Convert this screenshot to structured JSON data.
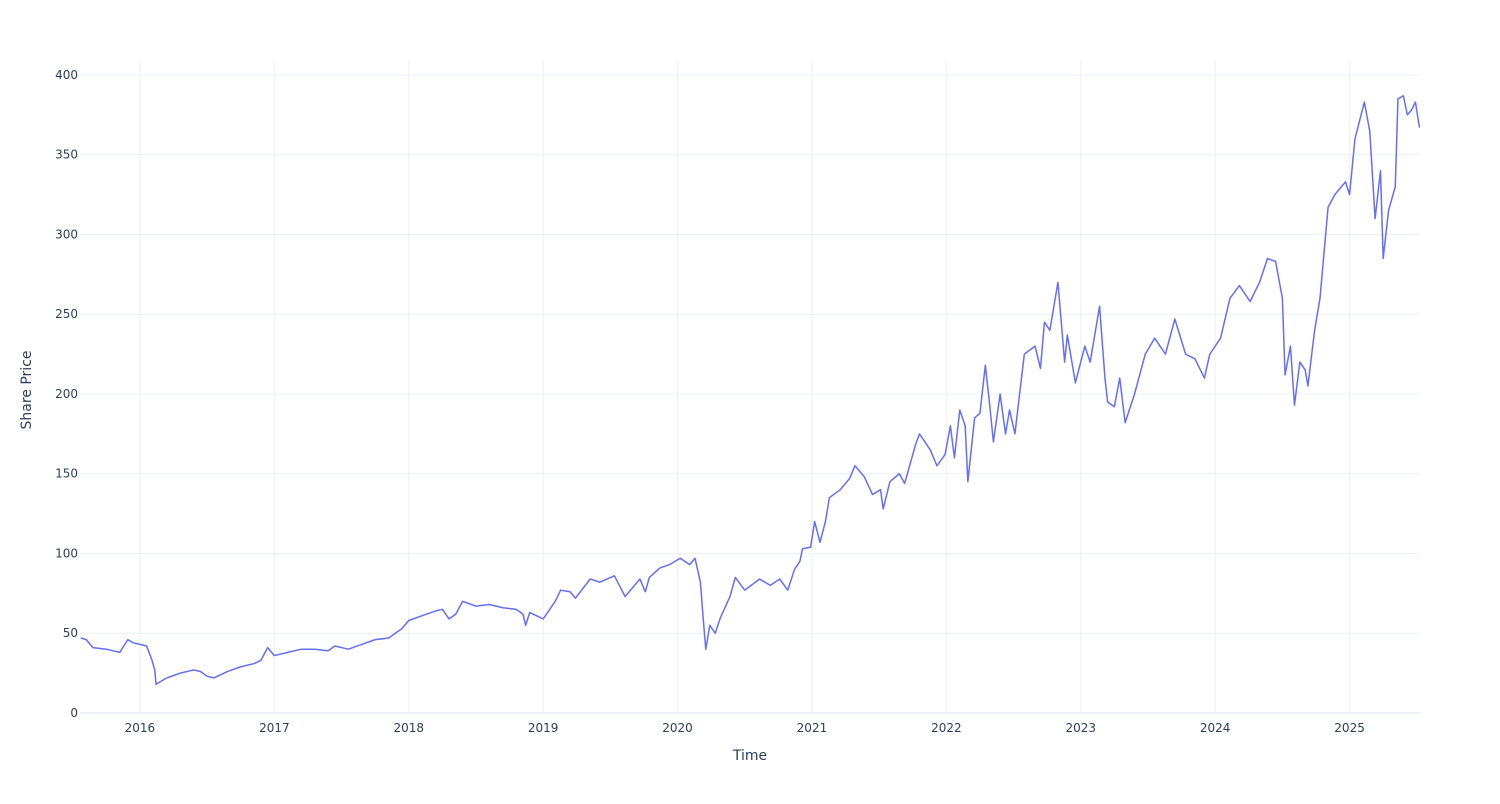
{
  "chart_data": {
    "type": "line",
    "x_label": "Time",
    "y_label": "Share Price",
    "xlim": [
      2015.554,
      2025.524
    ],
    "xticks": [
      2016,
      2017,
      2018,
      2019,
      2020,
      2021,
      2022,
      2023,
      2024,
      2025
    ],
    "ylim": [
      0,
      409.4
    ],
    "yticks": [
      0,
      50,
      100,
      150,
      200,
      250,
      300,
      350,
      400
    ],
    "grid": true,
    "series": [
      {
        "color": "#636efa",
        "x": [
          2015.56,
          2015.6,
          2015.65,
          2015.75,
          2015.85,
          2015.91,
          2015.95,
          2016.0,
          2016.05,
          2016.09,
          2016.11,
          2016.12,
          2016.2,
          2016.3,
          2016.4,
          2016.45,
          2016.5,
          2016.55,
          2016.65,
          2016.75,
          2016.85,
          2016.9,
          2016.95,
          2017.0,
          2017.1,
          2017.2,
          2017.3,
          2017.4,
          2017.45,
          2017.55,
          2017.65,
          2017.75,
          2017.85,
          2017.9,
          2017.95,
          2018.0,
          2018.1,
          2018.2,
          2018.25,
          2018.3,
          2018.35,
          2018.4,
          2018.5,
          2018.6,
          2018.7,
          2018.8,
          2018.85,
          2018.87,
          2018.9,
          2018.95,
          2019.0,
          2019.09,
          2019.13,
          2019.2,
          2019.24,
          2019.35,
          2019.42,
          2019.53,
          2019.61,
          2019.68,
          2019.72,
          2019.76,
          2019.79,
          2019.87,
          2019.94,
          2020.02,
          2020.09,
          2020.13,
          2020.17,
          2020.19,
          2020.21,
          2020.24,
          2020.28,
          2020.32,
          2020.39,
          2020.43,
          2020.5,
          2020.61,
          2020.69,
          2020.76,
          2020.82,
          2020.87,
          2020.91,
          2020.93,
          2020.99,
          2021.02,
          2021.06,
          2021.1,
          2021.13,
          2021.21,
          2021.28,
          2021.32,
          2021.39,
          2021.45,
          2021.51,
          2021.53,
          2021.58,
          2021.65,
          2021.69,
          2021.77,
          2021.8,
          2021.88,
          2021.93,
          2021.99,
          2022.03,
          2022.06,
          2022.1,
          2022.14,
          2022.16,
          2022.21,
          2022.25,
          2022.29,
          2022.32,
          2022.35,
          2022.4,
          2022.44,
          2022.47,
          2022.51,
          2022.58,
          2022.66,
          2022.7,
          2022.73,
          2022.77,
          2022.83,
          2022.88,
          2022.9,
          2022.96,
          2023.03,
          2023.07,
          2023.14,
          2023.18,
          2023.2,
          2023.25,
          2023.29,
          2023.33,
          2023.4,
          2023.48,
          2023.55,
          2023.63,
          2023.7,
          2023.78,
          2023.85,
          2023.92,
          2023.96,
          2024.04,
          2024.11,
          2024.18,
          2024.26,
          2024.33,
          2024.39,
          2024.45,
          2024.5,
          2024.52,
          2024.56,
          2024.59,
          2024.63,
          2024.67,
          2024.69,
          2024.74,
          2024.78,
          2024.84,
          2024.89,
          2024.97,
          2025.0,
          2025.04,
          2025.11,
          2025.15,
          2025.19,
          2025.23,
          2025.25,
          2025.29,
          2025.34,
          2025.36,
          2025.4,
          2025.43,
          2025.46,
          2025.49,
          2025.52
        ],
        "values": [
          47,
          46,
          41,
          40,
          38,
          46,
          44,
          43,
          42,
          33,
          27,
          18,
          22,
          25,
          27,
          26,
          23,
          22,
          26,
          29,
          31,
          33,
          41,
          36,
          38,
          40,
          40,
          39,
          42,
          40,
          43,
          46,
          47,
          50,
          53,
          58,
          61,
          64,
          65,
          59,
          62,
          70,
          67,
          68,
          66,
          65,
          62,
          55,
          63,
          61,
          59,
          70,
          77,
          76,
          72,
          84,
          82,
          86,
          73,
          80,
          84,
          76,
          85,
          91,
          93,
          97,
          93,
          97,
          82,
          60,
          40,
          55,
          50,
          60,
          73,
          85,
          77,
          84,
          80,
          84,
          77,
          90,
          95,
          103,
          104,
          120,
          107,
          120,
          135,
          140,
          147,
          155,
          148,
          137,
          140,
          128,
          145,
          150,
          144,
          168,
          175,
          165,
          155,
          162,
          180,
          160,
          190,
          180,
          145,
          185,
          188,
          218,
          195,
          170,
          200,
          175,
          190,
          175,
          225,
          230,
          216,
          245,
          240,
          270,
          220,
          237,
          207,
          230,
          220,
          255,
          210,
          195,
          192,
          210,
          182,
          200,
          225,
          235,
          225,
          247,
          225,
          222,
          210,
          225,
          235,
          260,
          268,
          258,
          270,
          285,
          283,
          260,
          212,
          230,
          193,
          220,
          215,
          205,
          240,
          260,
          317,
          325,
          333,
          325,
          360,
          383,
          365,
          310,
          340,
          285,
          315,
          330,
          385,
          387,
          375,
          378,
          383,
          367
        ]
      }
    ]
  }
}
